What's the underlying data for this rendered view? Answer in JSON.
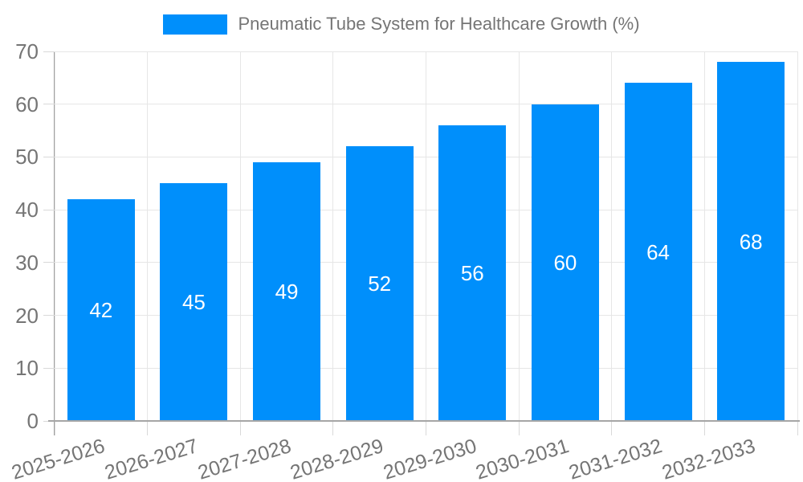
{
  "chart_data": {
    "type": "bar",
    "title": "Pneumatic Tube System for Healthcare Growth (%)",
    "categories": [
      "2025-2026",
      "2026-2027",
      "2027-2028",
      "2028-2029",
      "2029-2030",
      "2030-2031",
      "2031-2032",
      "2032-2033"
    ],
    "values": [
      42,
      45,
      49,
      52,
      56,
      60,
      64,
      68
    ],
    "xlabel": "",
    "ylabel": "",
    "ylim": [
      0,
      70
    ],
    "yticks": [
      0,
      10,
      20,
      30,
      40,
      50,
      60,
      70
    ],
    "grid": true,
    "legend_position": "top",
    "bar_color": "#008FFB",
    "bar_value_label_color": "#ffffff",
    "tick_label_color": "#757575",
    "gridline_color": "#e6e6e6",
    "axis_line_color": "#a0a0a0"
  }
}
